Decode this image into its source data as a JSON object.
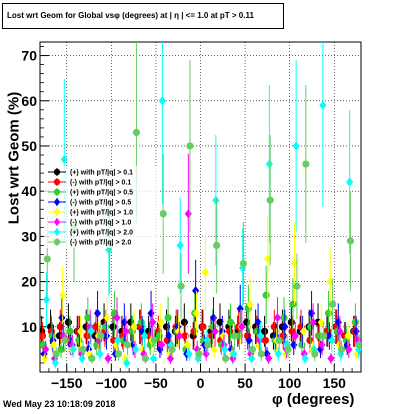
{
  "title": "Lost wrt Geom for Global vsφ (degrees) at | η | <= 1.0 at pT > 0.11",
  "xlabel": "φ (degrees)",
  "ylabel": "Lost wrt Geom (%)",
  "footer": "Wed May 23 10:18:09 2018",
  "chart_data": {
    "type": "scatter",
    "title": "Lost wrt Geom for Global vsφ (degrees) at | η | <= 1.0 at pT > 0.11",
    "xlabel": "φ (degrees)",
    "ylabel": "Lost wrt Geom (%)",
    "xlim": [
      -180,
      180
    ],
    "ylim": [
      0,
      73
    ],
    "xticks": [
      -150,
      -100,
      -50,
      0,
      50,
      100,
      150
    ],
    "xtick_labels": [
      "−150",
      "−100",
      "−50",
      "0",
      "50",
      "100",
      "150"
    ],
    "yticks": [
      10,
      20,
      30,
      40,
      50,
      60,
      70
    ],
    "grid": true,
    "legend_position": "left",
    "series": [
      {
        "name": "(+) with pT/|q| > 0.1",
        "color": "#000000",
        "marker": "circle",
        "x": [
          -175,
          -165,
          -155,
          -145,
          -135,
          -125,
          -115,
          -105,
          -95,
          -85,
          -75,
          -65,
          -55,
          -45,
          -35,
          -25,
          -15,
          -5,
          5,
          15,
          25,
          35,
          45,
          55,
          65,
          75,
          85,
          95,
          105,
          115,
          125,
          135,
          145,
          155,
          165,
          175
        ],
        "y": [
          9,
          10,
          8,
          11,
          9,
          10,
          8,
          11,
          10,
          9,
          11,
          10,
          9,
          8,
          10,
          9,
          11,
          8,
          10,
          9,
          11,
          10,
          9,
          11,
          10,
          9,
          8,
          10,
          11,
          9,
          10,
          11,
          9,
          10,
          8,
          9
        ]
      },
      {
        "name": "(-) with pT/|q| > 0.1",
        "color": "#ff0000",
        "marker": "circle",
        "x": [
          -175,
          -165,
          -155,
          -145,
          -135,
          -125,
          -115,
          -105,
          -95,
          -85,
          -75,
          -65,
          -55,
          -45,
          -35,
          -25,
          -15,
          -5,
          5,
          15,
          25,
          35,
          45,
          55,
          65,
          75,
          85,
          95,
          105,
          115,
          125,
          135,
          145,
          155,
          165,
          175
        ],
        "y": [
          8,
          9,
          10,
          7,
          9,
          8,
          10,
          9,
          7,
          8,
          9,
          10,
          8,
          9,
          7,
          10,
          8,
          9,
          10,
          8,
          7,
          9,
          10,
          8,
          9,
          7,
          10,
          8,
          9,
          10,
          7,
          8,
          9,
          10,
          8,
          9
        ]
      },
      {
        "name": "(+) with pT/|q| > 0.5",
        "color": "#33cc33",
        "marker": "circle",
        "x": [
          -175,
          -165,
          -155,
          -145,
          -135,
          -125,
          -115,
          -105,
          -95,
          -85,
          -75,
          -65,
          -55,
          -45,
          -35,
          -25,
          -15,
          -5,
          5,
          15,
          25,
          35,
          45,
          55,
          65,
          75,
          85,
          95,
          105,
          115,
          125,
          135,
          145,
          155,
          165,
          175
        ],
        "y": [
          6,
          8,
          5,
          9,
          7,
          12,
          6,
          10,
          13,
          7,
          9,
          11,
          6,
          8,
          12,
          9,
          5,
          13,
          7,
          10,
          6,
          11,
          8,
          14,
          9,
          17,
          7,
          12,
          15,
          6,
          10,
          8,
          13,
          9,
          7,
          11
        ]
      },
      {
        "name": "(-) with pT/|q| > 0.5",
        "color": "#0000ff",
        "marker": "diamond",
        "x": [
          -175,
          -165,
          -155,
          -145,
          -135,
          -125,
          -115,
          -105,
          -95,
          -85,
          -75,
          -65,
          -55,
          -45,
          -35,
          -25,
          -15,
          -5,
          5,
          15,
          25,
          35,
          45,
          55,
          65,
          75,
          85,
          95,
          105,
          115,
          125,
          135,
          145,
          155,
          165,
          175
        ],
        "y": [
          4,
          7,
          12,
          6,
          9,
          5,
          13,
          8,
          4,
          11,
          6,
          9,
          13,
          5,
          8,
          10,
          4,
          18,
          6,
          12,
          9,
          5,
          14,
          7,
          11,
          4,
          8,
          10,
          6,
          9,
          13,
          5,
          8,
          11,
          6,
          9
        ]
      },
      {
        "name": "(+) with pT/|q| > 1.0",
        "color": "#ffff00",
        "marker": "diamond",
        "x": [
          -175,
          -165,
          -155,
          -145,
          -135,
          -125,
          -115,
          -105,
          -95,
          -85,
          -75,
          -65,
          -55,
          -45,
          -35,
          -25,
          -15,
          -5,
          5,
          15,
          25,
          35,
          45,
          55,
          65,
          75,
          85,
          95,
          105,
          115,
          125,
          135,
          145,
          155,
          165,
          175
        ],
        "y": [
          3,
          6,
          17,
          5,
          9,
          4,
          8,
          12,
          6,
          3,
          10,
          5,
          7,
          11,
          4,
          9,
          6,
          13,
          22,
          5,
          8,
          4,
          10,
          15,
          6,
          25,
          7,
          4,
          24,
          9,
          5,
          11,
          20,
          6,
          8,
          4
        ]
      },
      {
        "name": "(-) with pT/|q| > 1.0",
        "color": "#ff00ff",
        "marker": "diamond",
        "x": [
          -175,
          -165,
          -155,
          -145,
          -135,
          -125,
          -115,
          -105,
          -95,
          -85,
          -75,
          -65,
          -55,
          -45,
          -35,
          -25,
          -15,
          -5,
          5,
          15,
          25,
          35,
          45,
          55,
          65,
          75,
          85,
          95,
          105,
          115,
          125,
          135,
          145,
          155,
          165,
          175
        ],
        "y": [
          5,
          3,
          8,
          6,
          4,
          10,
          7,
          3,
          12,
          9,
          5,
          4,
          11,
          6,
          3,
          8,
          35,
          5,
          4,
          9,
          6,
          3,
          10,
          4,
          7,
          3,
          12,
          5,
          8,
          4,
          11,
          6,
          3,
          9,
          5,
          7
        ]
      },
      {
        "name": "(+) with pT/|q| > 2.0",
        "color": "#00ffff",
        "marker": "diamond",
        "x": [
          -175,
          -165,
          -155,
          -145,
          -135,
          -125,
          -115,
          -105,
          -95,
          -85,
          -75,
          -65,
          -55,
          -45,
          -35,
          -25,
          -15,
          -5,
          5,
          15,
          25,
          35,
          45,
          55,
          65,
          75,
          85,
          95,
          105,
          115,
          125,
          135,
          145,
          155,
          165,
          175
        ],
        "y": [
          16,
          2,
          47,
          5,
          3,
          9,
          4,
          27,
          7,
          2,
          5,
          8,
          3,
          60,
          6,
          28,
          4,
          3,
          7,
          38,
          5,
          4,
          23,
          3,
          8,
          46,
          4,
          6,
          50,
          3,
          5,
          59,
          7,
          4,
          42,
          5
        ]
      },
      {
        "name": "(-) with pT/|q| > 2.0",
        "color": "#66cc66",
        "marker": "circle",
        "x": [
          -175,
          -165,
          -155,
          -145,
          -135,
          -125,
          -115,
          -105,
          -95,
          -85,
          -75,
          -65,
          -55,
          -45,
          -35,
          -25,
          -15,
          -5,
          5,
          15,
          25,
          35,
          45,
          55,
          65,
          75,
          85,
          95,
          105,
          115,
          125,
          135,
          145,
          155,
          165,
          175
        ],
        "y": [
          25,
          4,
          7,
          32,
          5,
          3,
          8,
          28,
          4,
          6,
          53,
          3,
          7,
          35,
          5,
          19,
          50,
          4,
          6,
          28,
          3,
          8,
          24,
          5,
          4,
          38,
          7,
          5,
          19,
          46,
          4,
          8,
          15,
          5,
          29,
          6
        ]
      }
    ]
  }
}
